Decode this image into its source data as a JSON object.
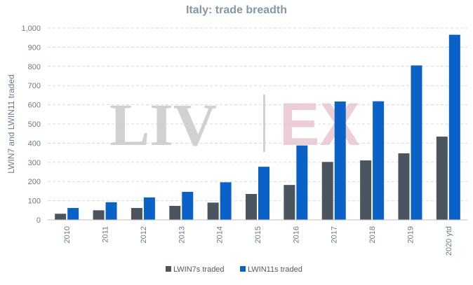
{
  "chart_data": {
    "type": "bar",
    "title": "Italy: trade breadth",
    "ylabel": "LWIN7 and LWIN11 traded",
    "xlabel": "",
    "ylim": [
      0,
      1000
    ],
    "yticks": [
      0,
      100,
      200,
      300,
      400,
      500,
      600,
      700,
      800,
      900,
      1000
    ],
    "ytick_labels": [
      "0",
      "100",
      "200",
      "300",
      "400",
      "500",
      "600",
      "700",
      "800",
      "900",
      "1,000"
    ],
    "categories": [
      "2010",
      "2011",
      "2012",
      "2013",
      "2014",
      "2015",
      "2016",
      "2017",
      "2018",
      "2019",
      "2020 ytd"
    ],
    "series": [
      {
        "name": "LWIN7s traded",
        "color": "#4a5560",
        "values": [
          32,
          50,
          62,
          73,
          90,
          135,
          182,
          302,
          310,
          347,
          434
        ]
      },
      {
        "name": "LWIN11s traded",
        "color": "#0a62c9",
        "values": [
          62,
          92,
          117,
          146,
          196,
          277,
          388,
          617,
          618,
          805,
          965
        ]
      }
    ],
    "grid": true,
    "legend_position": "bottom-center",
    "watermark": {
      "left": "LIV",
      "right": "EX"
    }
  }
}
